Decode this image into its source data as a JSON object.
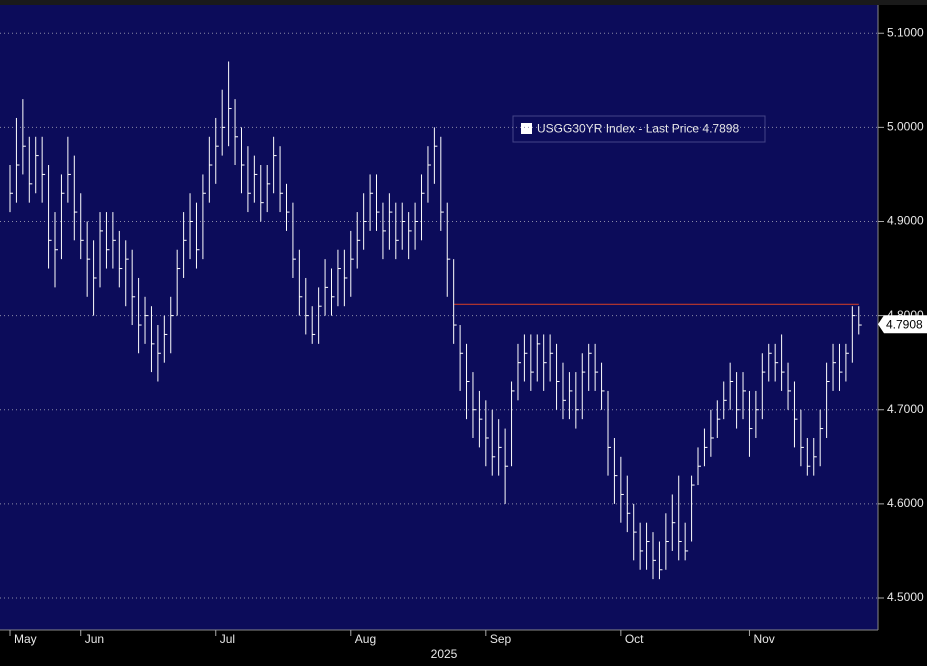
{
  "chart_data": {
    "type": "hlc",
    "categories": [
      "May",
      null,
      null,
      null,
      null,
      null,
      null,
      null,
      null,
      null,
      null,
      "Jun",
      null,
      null,
      null,
      null,
      null,
      null,
      null,
      null,
      null,
      null,
      null,
      null,
      null,
      null,
      null,
      null,
      null,
      null,
      null,
      null,
      "Jul",
      null,
      null,
      null,
      null,
      null,
      null,
      null,
      null,
      null,
      null,
      null,
      null,
      null,
      null,
      null,
      null,
      null,
      null,
      null,
      null,
      "Aug",
      null,
      null,
      null,
      null,
      null,
      null,
      null,
      null,
      null,
      null,
      null,
      null,
      null,
      null,
      null,
      null,
      null,
      null,
      null,
      null,
      "Sep",
      null,
      null,
      null,
      null,
      null,
      null,
      null,
      null,
      null,
      null,
      null,
      null,
      null,
      null,
      null,
      null,
      null,
      null,
      null,
      null,
      "Oct",
      null,
      null,
      null,
      null,
      null,
      null,
      null,
      null,
      null,
      null,
      null,
      null,
      null,
      null,
      null,
      null,
      null,
      null,
      null,
      "Nov",
      null,
      null,
      null,
      null,
      null,
      null,
      null,
      null,
      null,
      null,
      null,
      null,
      null,
      null,
      null,
      null,
      null
    ],
    "year_label": "2025",
    "series": [
      {
        "name": "USGG30YR Index - Last Price",
        "color": "#ffffff",
        "high": [
          4.96,
          5.01,
          5.03,
          4.99,
          4.99,
          4.99,
          4.96,
          4.91,
          4.95,
          4.99,
          4.97,
          4.93,
          4.9,
          4.88,
          4.91,
          4.91,
          4.91,
          4.89,
          4.88,
          4.87,
          4.84,
          4.82,
          4.81,
          4.79,
          4.8,
          4.82,
          4.87,
          4.91,
          4.93,
          4.92,
          4.95,
          4.99,
          5.01,
          5.04,
          5.07,
          5.03,
          5.0,
          4.98,
          4.97,
          4.96,
          4.96,
          4.99,
          4.98,
          4.94,
          4.92,
          4.87,
          4.84,
          4.81,
          4.83,
          4.86,
          4.85,
          4.87,
          4.87,
          4.89,
          4.91,
          4.93,
          4.95,
          4.95,
          4.92,
          4.93,
          4.92,
          4.92,
          4.91,
          4.92,
          4.95,
          4.98,
          5.0,
          4.99,
          4.92,
          4.86,
          4.79,
          4.77,
          4.74,
          4.72,
          4.71,
          4.7,
          4.69,
          4.68,
          4.73,
          4.77,
          4.78,
          4.78,
          4.78,
          4.78,
          4.78,
          4.77,
          4.75,
          4.74,
          4.74,
          4.76,
          4.77,
          4.77,
          4.75,
          4.72,
          4.67,
          4.65,
          4.63,
          4.6,
          4.58,
          4.58,
          4.57,
          4.56,
          4.59,
          4.61,
          4.63,
          4.58,
          4.63,
          4.66,
          4.68,
          4.7,
          4.71,
          4.73,
          4.75,
          4.74,
          4.74,
          4.72,
          4.72,
          4.76,
          4.77,
          4.77,
          4.78,
          4.75,
          4.73,
          4.7,
          4.67,
          4.67,
          4.7,
          4.75,
          4.77,
          4.77,
          4.77,
          4.81,
          4.81
        ],
        "low": [
          4.91,
          4.92,
          4.95,
          4.92,
          4.93,
          4.92,
          4.85,
          4.83,
          4.86,
          4.92,
          4.88,
          4.86,
          4.82,
          4.8,
          4.83,
          4.85,
          4.85,
          4.83,
          4.81,
          4.79,
          4.76,
          4.77,
          4.74,
          4.73,
          4.75,
          4.76,
          4.8,
          4.84,
          4.86,
          4.85,
          4.86,
          4.92,
          4.94,
          4.97,
          4.98,
          4.96,
          4.93,
          4.91,
          4.92,
          4.9,
          4.91,
          4.93,
          4.91,
          4.89,
          4.84,
          4.8,
          4.78,
          4.77,
          4.77,
          4.8,
          4.8,
          4.81,
          4.81,
          4.82,
          4.85,
          4.87,
          4.89,
          4.89,
          4.86,
          4.87,
          4.86,
          4.87,
          4.86,
          4.87,
          4.88,
          4.92,
          4.94,
          4.89,
          4.82,
          4.77,
          4.72,
          4.69,
          4.67,
          4.66,
          4.64,
          4.63,
          4.63,
          4.6,
          4.64,
          4.71,
          4.73,
          4.72,
          4.73,
          4.72,
          4.73,
          4.7,
          4.69,
          4.69,
          4.68,
          4.69,
          4.72,
          4.72,
          4.7,
          4.63,
          4.6,
          4.58,
          4.57,
          4.54,
          4.53,
          4.53,
          4.52,
          4.52,
          4.53,
          4.55,
          4.54,
          4.54,
          4.56,
          4.62,
          4.64,
          4.65,
          4.67,
          4.69,
          4.7,
          4.68,
          4.69,
          4.65,
          4.67,
          4.69,
          4.73,
          4.73,
          4.72,
          4.7,
          4.66,
          4.64,
          4.63,
          4.63,
          4.64,
          4.67,
          4.72,
          4.72,
          4.73,
          4.75,
          4.78
        ],
        "close": [
          4.93,
          4.96,
          4.98,
          4.94,
          4.97,
          4.95,
          4.88,
          4.87,
          4.93,
          4.95,
          4.91,
          4.88,
          4.86,
          4.84,
          4.89,
          4.87,
          4.88,
          4.85,
          4.86,
          4.82,
          4.79,
          4.8,
          4.77,
          4.76,
          4.78,
          4.8,
          4.85,
          4.88,
          4.9,
          4.87,
          4.93,
          4.96,
          4.98,
          5.0,
          5.02,
          4.99,
          4.96,
          4.93,
          4.95,
          4.92,
          4.94,
          4.97,
          4.93,
          4.91,
          4.86,
          4.82,
          4.8,
          4.78,
          4.81,
          4.83,
          4.82,
          4.85,
          4.84,
          4.86,
          4.88,
          4.9,
          4.93,
          4.91,
          4.89,
          4.91,
          4.88,
          4.9,
          4.89,
          4.9,
          4.93,
          4.96,
          4.98,
          4.91,
          4.86,
          4.79,
          4.76,
          4.73,
          4.7,
          4.69,
          4.67,
          4.65,
          4.66,
          4.64,
          4.72,
          4.75,
          4.76,
          4.74,
          4.77,
          4.75,
          4.76,
          4.73,
          4.71,
          4.72,
          4.7,
          4.74,
          4.76,
          4.74,
          4.72,
          4.66,
          4.63,
          4.61,
          4.59,
          4.57,
          4.55,
          4.56,
          4.54,
          4.53,
          4.56,
          4.58,
          4.56,
          4.55,
          4.62,
          4.64,
          4.66,
          4.67,
          4.69,
          4.71,
          4.73,
          4.7,
          4.72,
          4.68,
          4.7,
          4.74,
          4.76,
          4.75,
          4.74,
          4.72,
          4.69,
          4.66,
          4.64,
          4.65,
          4.68,
          4.73,
          4.75,
          4.74,
          4.76,
          4.8,
          4.79
        ]
      }
    ],
    "legend_value": 4.7898,
    "last_value": 4.7908,
    "hline": {
      "value": 4.812,
      "color": "#c0392b",
      "start": 69
    },
    "ylim": [
      4.466,
      5.13
    ],
    "yticks": [
      {
        "value": 4.5,
        "label": "4.5000"
      },
      {
        "value": 4.6,
        "label": "4.6000"
      },
      {
        "value": 4.7,
        "label": "4.7000"
      },
      {
        "value": 4.8,
        "label": "4.8000"
      },
      {
        "value": 4.9,
        "label": "4.9000"
      },
      {
        "value": 5.0,
        "label": "5.0000"
      },
      {
        "value": 5.1,
        "label": "5.1000"
      }
    ],
    "grid": true,
    "background": "#0c0c5a"
  }
}
